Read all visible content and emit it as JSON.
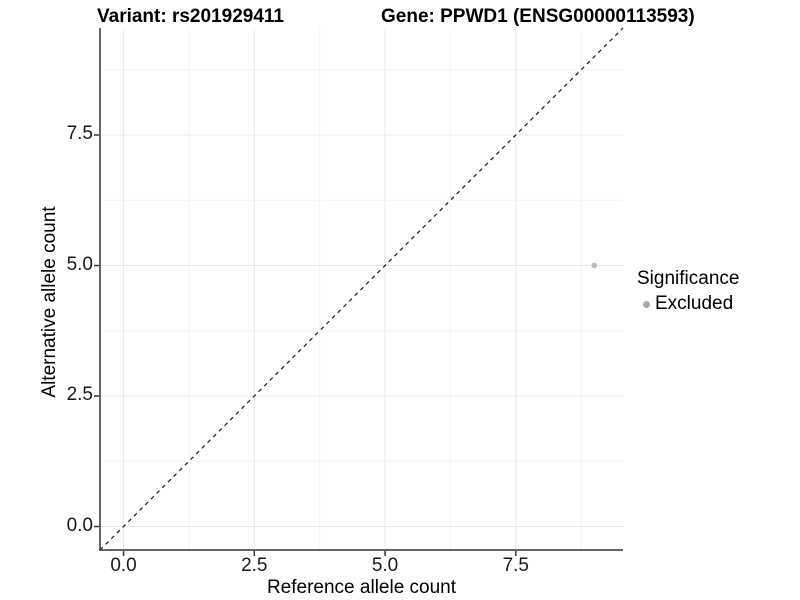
{
  "titles": {
    "variant": "Variant: rs201929411",
    "gene": "Gene: PPWD1 (ENSG00000113593)"
  },
  "chart_data": {
    "type": "scatter",
    "title": "Variant: rs201929411  Gene: PPWD1 (ENSG00000113593)",
    "xlabel": "Reference allele count",
    "ylabel": "Alternative allele count",
    "xlim": [
      -0.45,
      9.55
    ],
    "ylim": [
      -0.45,
      9.55
    ],
    "x_ticks": {
      "values": [
        0,
        2.5,
        5,
        7.5
      ],
      "labels": [
        "0.0",
        "2.5",
        "5.0",
        "7.5"
      ],
      "minor": [
        1.25,
        3.75,
        6.25,
        8.75
      ]
    },
    "y_ticks": {
      "values": [
        0,
        2.5,
        5,
        7.5
      ],
      "labels": [
        "0.0",
        "2.5",
        "5.0",
        "7.5"
      ],
      "minor": [
        1.25,
        3.75,
        6.25,
        8.75
      ]
    },
    "grid": true,
    "points": [
      {
        "x": 9,
        "y": 5,
        "series": "Excluded",
        "color": "#bdbdbd",
        "radius": 2.8
      }
    ],
    "reference_line": {
      "type": "identity y=x",
      "style": "dashed",
      "color": "#1a1a1a",
      "width": 1.2,
      "dash": "4 4"
    },
    "legend_position": "right"
  },
  "legend": {
    "title": "Significance",
    "entries": [
      {
        "label": "Excluded",
        "color": "#aaaaaa"
      }
    ]
  },
  "colors": {
    "background": "#ffffff",
    "grid_major": "#e9e9e9",
    "grid_minor": "#f4f4f4",
    "axis_line": "#333333",
    "tick_mark": "#333333",
    "text": "#000000",
    "point": "#bdbdbd"
  }
}
